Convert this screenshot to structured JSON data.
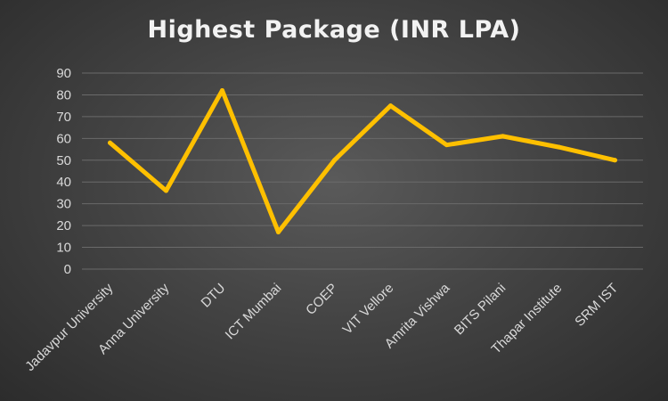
{
  "chart_data": {
    "type": "line",
    "title": "Highest Package (INR LPA)",
    "xlabel": "",
    "ylabel": "",
    "categories": [
      "Jadavpur University",
      "Anna University",
      "DTU",
      "ICT Mumbai",
      "COEP",
      "VIT Vellore",
      "Amrita Vishwa",
      "BITS Pilani",
      "Thapar Institute",
      "SRM IST"
    ],
    "series": [
      {
        "values": [
          58,
          36,
          82,
          17,
          50,
          75,
          57,
          61,
          56,
          50
        ]
      }
    ],
    "ylim": [
      0,
      90
    ],
    "yticks": [
      0,
      10,
      20,
      30,
      40,
      50,
      60,
      70,
      80,
      90
    ],
    "grid": true,
    "legend": "none",
    "line_color": "#ffc000"
  }
}
